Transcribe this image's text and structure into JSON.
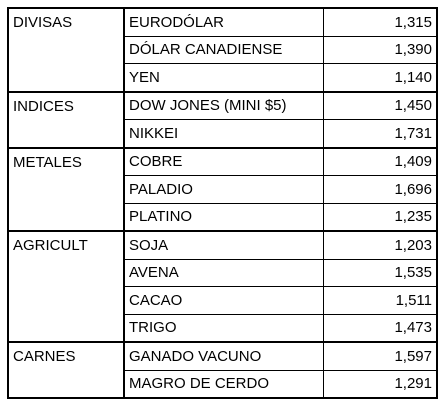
{
  "groups": [
    {
      "label": "DIVISAS",
      "items": [
        {
          "name": "EURODÓLAR",
          "value": "1,315"
        },
        {
          "name": "DÓLAR CANADIENSE",
          "value": "1,390"
        },
        {
          "name": "YEN",
          "value": "1,140"
        }
      ]
    },
    {
      "label": "INDICES",
      "items": [
        {
          "name": "DOW JONES (MINI $5)",
          "value": "1,450"
        },
        {
          "name": "NIKKEI",
          "value": "1,731"
        }
      ]
    },
    {
      "label": "METALES",
      "items": [
        {
          "name": "COBRE",
          "value": "1,409"
        },
        {
          "name": "PALADIO",
          "value": "1,696"
        },
        {
          "name": "PLATINO",
          "value": "1,235"
        }
      ]
    },
    {
      "label": "AGRICULT",
      "items": [
        {
          "name": "SOJA",
          "value": "1,203"
        },
        {
          "name": "AVENA",
          "value": "1,535"
        },
        {
          "name": "CACAO",
          "value": "1,511"
        },
        {
          "name": "TRIGO",
          "value": "1,473"
        }
      ]
    },
    {
      "label": "CARNES",
      "items": [
        {
          "name": "GANADO VACUNO",
          "value": "1,597"
        },
        {
          "name": "MAGRO DE CERDO",
          "value": "1,291"
        }
      ]
    }
  ]
}
